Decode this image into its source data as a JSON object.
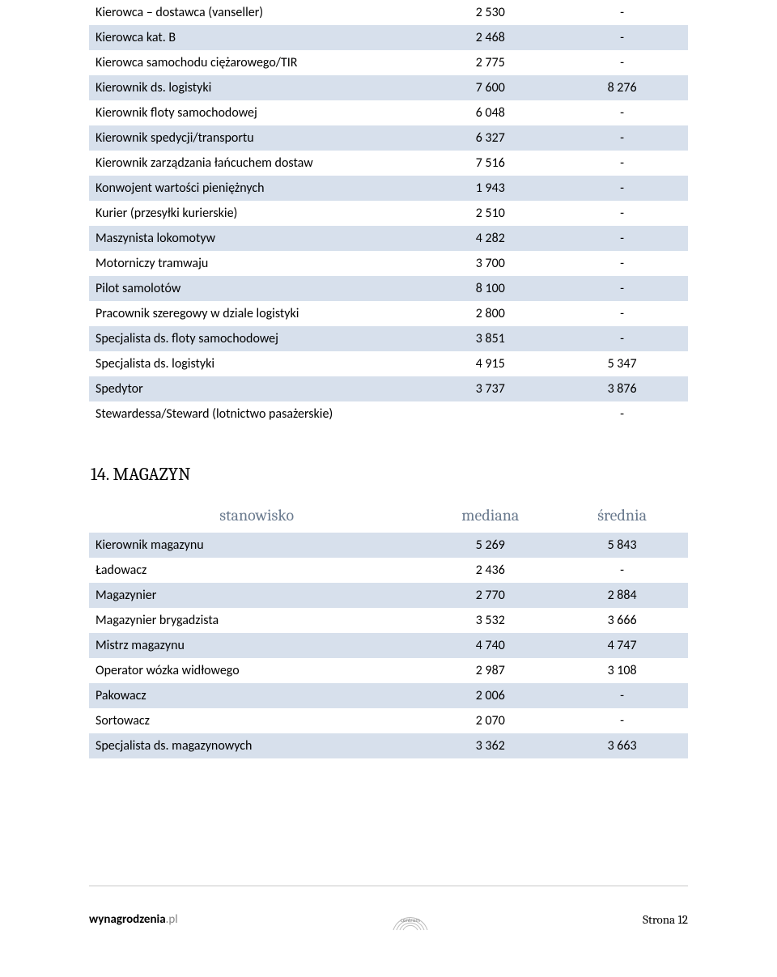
{
  "table1": {
    "rows": [
      {
        "label": "Kierowca – dostawca (vanseller)",
        "v1": "2 530",
        "v2": "-",
        "band": false
      },
      {
        "label": "Kierowca kat. B",
        "v1": "2 468",
        "v2": "-",
        "band": true
      },
      {
        "label": "Kierowca samochodu ciężarowego/TIR",
        "v1": "2 775",
        "v2": "-",
        "band": false
      },
      {
        "label": "Kierownik ds. logistyki",
        "v1": "7 600",
        "v2": "8 276",
        "band": true
      },
      {
        "label": "Kierownik floty samochodowej",
        "v1": "6 048",
        "v2": "-",
        "band": false
      },
      {
        "label": "Kierownik spedycji/transportu",
        "v1": "6 327",
        "v2": "-",
        "band": true
      },
      {
        "label": "Kierownik zarządzania łańcuchem dostaw",
        "v1": "7 516",
        "v2": "-",
        "band": false
      },
      {
        "label": "Konwojent wartości pieniężnych",
        "v1": "1 943",
        "v2": "-",
        "band": true
      },
      {
        "label": "Kurier (przesyłki kurierskie)",
        "v1": "2 510",
        "v2": "-",
        "band": false
      },
      {
        "label": "Maszynista lokomotyw",
        "v1": "4 282",
        "v2": "-",
        "band": true
      },
      {
        "label": "Motorniczy tramwaju",
        "v1": "3 700",
        "v2": "-",
        "band": false
      },
      {
        "label": "Pilot samolotów",
        "v1": "8 100",
        "v2": "-",
        "band": true
      },
      {
        "label": "Pracownik szeregowy w dziale logistyki",
        "v1": "2 800",
        "v2": "-",
        "band": false
      },
      {
        "label": "Specjalista ds. floty samochodowej",
        "v1": "3 851",
        "v2": "-",
        "band": true
      },
      {
        "label": "Specjalista ds. logistyki",
        "v1": "4 915",
        "v2": "5 347",
        "band": false
      },
      {
        "label": "Spedytor",
        "v1": "3 737",
        "v2": "3 876",
        "band": true
      },
      {
        "label": "Stewardessa/Steward (lotnictwo pasażerskie)",
        "v1": "",
        "v2": "-",
        "band": false
      }
    ]
  },
  "section2": {
    "title": "14. MAGAZYN",
    "headers": {
      "c0": "stanowisko",
      "c1": "mediana",
      "c2": "średnia"
    },
    "rows": [
      {
        "label": "Kierownik magazynu",
        "v1": "5 269",
        "v2": "5 843",
        "band": true
      },
      {
        "label": "Ładowacz",
        "v1": "2 436",
        "v2": "-",
        "band": false
      },
      {
        "label": "Magazynier",
        "v1": "2 770",
        "v2": "2 884",
        "band": true
      },
      {
        "label": "Magazynier brygadzista",
        "v1": "3 532",
        "v2": "3 666",
        "band": false
      },
      {
        "label": "Mistrz magazynu",
        "v1": "4 740",
        "v2": "4 747",
        "band": true
      },
      {
        "label": "Operator wózka widłowego",
        "v1": "2 987",
        "v2": "3 108",
        "band": false
      },
      {
        "label": "Pakowacz",
        "v1": "2 006",
        "v2": "-",
        "band": true
      },
      {
        "label": "Sortowacz",
        "v1": "2 070",
        "v2": "-",
        "band": false
      },
      {
        "label": "Specjalista ds. magazynowych",
        "v1": "3 362",
        "v2": "3 663",
        "band": true
      }
    ]
  },
  "footer": {
    "site_bold": "wynagrodzenia",
    "site_light": ".pl",
    "logo_top": "centrum",
    "page_label": "Strona 12",
    "arc_color": "#bdbdbd"
  }
}
